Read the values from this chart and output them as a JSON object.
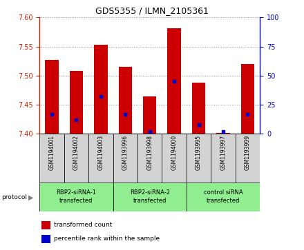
{
  "title": "GDS5355 / ILMN_2105361",
  "samples": [
    "GSM1194001",
    "GSM1194002",
    "GSM1194003",
    "GSM1193996",
    "GSM1193998",
    "GSM1194000",
    "GSM1193995",
    "GSM1193997",
    "GSM1193999"
  ],
  "red_values": [
    7.527,
    7.508,
    7.553,
    7.515,
    7.464,
    7.582,
    7.488,
    7.401,
    7.52
  ],
  "blue_values": [
    17,
    12,
    32,
    17,
    2,
    45,
    8,
    2,
    17
  ],
  "ylim_left": [
    7.4,
    7.6
  ],
  "ylim_right": [
    0,
    100
  ],
  "yticks_left": [
    7.4,
    7.45,
    7.5,
    7.55,
    7.6
  ],
  "yticks_right": [
    0,
    25,
    50,
    75,
    100
  ],
  "groups": [
    {
      "label": "RBP2-siRNA-1\ntransfected",
      "indices": [
        0,
        1,
        2
      ],
      "color": "#90ee90"
    },
    {
      "label": "RBP2-siRNA-2\ntransfected",
      "indices": [
        3,
        4,
        5
      ],
      "color": "#90ee90"
    },
    {
      "label": "control siRNA\ntransfected",
      "indices": [
        6,
        7,
        8
      ],
      "color": "#90ee90"
    }
  ],
  "protocol_label": "protocol",
  "bar_bottom": 7.4,
  "red_color": "#cc0000",
  "blue_color": "#0000cc",
  "sample_box_color": "#d3d3d3",
  "grid_color": "#888888",
  "left_axis_color": "#cc2200",
  "right_axis_color": "#0000cc",
  "fig_width": 4.4,
  "fig_height": 3.63,
  "dpi": 100
}
